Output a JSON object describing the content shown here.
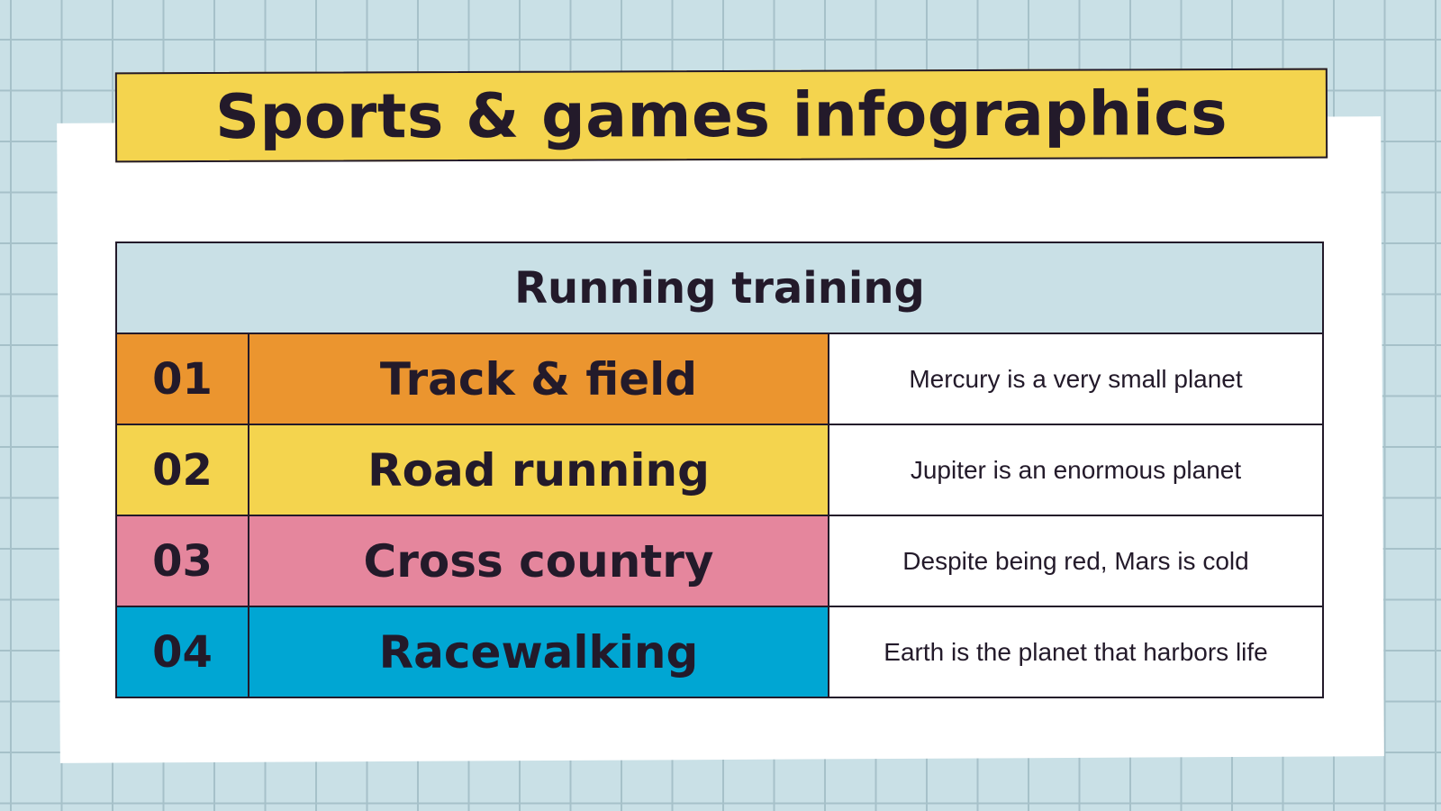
{
  "title": "Sports & games infographics",
  "table": {
    "header": "Running training",
    "rows": [
      {
        "number": "01",
        "name": "Track & field",
        "description": "Mercury is a very small planet",
        "color": "#eb952f"
      },
      {
        "number": "02",
        "name": "Road running",
        "description": "Jupiter is an enormous planet",
        "color": "#f4d44e"
      },
      {
        "number": "03",
        "name": "Cross country",
        "description": "Despite being red, Mars is cold",
        "color": "#e5869d"
      },
      {
        "number": "04",
        "name": "Racewalking",
        "description": "Earth is the planet that harbors life",
        "color": "#00a6d3"
      }
    ]
  },
  "colors": {
    "background": "#c9e0e6",
    "grid": "#a6c1c9",
    "title_bar": "#f4d44e",
    "text": "#231a2a"
  }
}
